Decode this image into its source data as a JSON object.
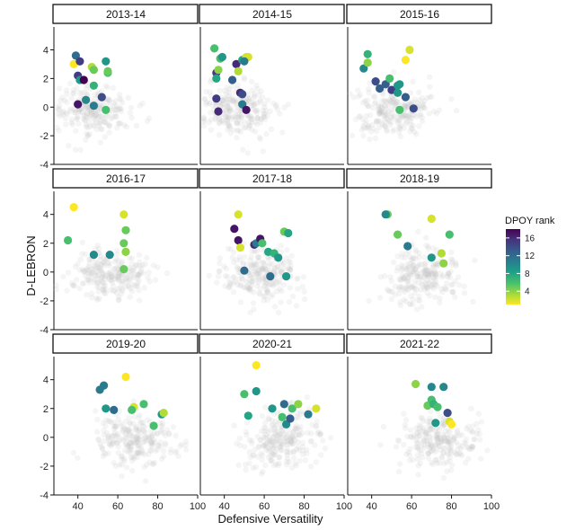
{
  "chart_data": {
    "type": "scatter",
    "subtype": "faceted",
    "xlabel": "Defensive Versatility",
    "ylabel": "D-LEBRON",
    "xlim": [
      28,
      100
    ],
    "ylim": [
      -4,
      5.6
    ],
    "x_ticks": [
      40,
      60,
      80,
      100
    ],
    "y_ticks": [
      -4,
      -2,
      0,
      2,
      4
    ],
    "color_scale": {
      "title": "DPOY rank",
      "palette": "viridis",
      "reversed": true,
      "domain": [
        1,
        18
      ],
      "ticks": [
        4,
        8,
        12,
        16
      ],
      "colors": [
        "#fde725",
        "#a0da39",
        "#4ac16d",
        "#1fa187",
        "#277f8e",
        "#365c8d",
        "#46327e",
        "#440154"
      ]
    },
    "background_points": "light grey cloud of all other players (undifferentiated)",
    "facets": [
      {
        "label": "2013-14",
        "points": [
          {
            "x": 38,
            "y": 3.0,
            "rank": 1
          },
          {
            "x": 39,
            "y": 3.6,
            "rank": 12
          },
          {
            "x": 40,
            "y": 2.2,
            "rank": 15
          },
          {
            "x": 41,
            "y": 3.2,
            "rank": 15
          },
          {
            "x": 41,
            "y": 1.9,
            "rank": 9
          },
          {
            "x": 43,
            "y": 1.9,
            "rank": 18
          },
          {
            "x": 40,
            "y": 0.2,
            "rank": 17
          },
          {
            "x": 44,
            "y": 0.5,
            "rank": 10
          },
          {
            "x": 47,
            "y": 2.8,
            "rank": 3
          },
          {
            "x": 48,
            "y": 2.6,
            "rank": 5
          },
          {
            "x": 48,
            "y": 1.5,
            "rank": 7
          },
          {
            "x": 48,
            "y": 0.1,
            "rank": 11
          },
          {
            "x": 52,
            "y": 0.7,
            "rank": 14
          },
          {
            "x": 54,
            "y": 3.2,
            "rank": 9
          },
          {
            "x": 55,
            "y": 2.4,
            "rank": 6
          },
          {
            "x": 55,
            "y": 2.5,
            "rank": 5
          },
          {
            "x": 54,
            "y": -0.2,
            "rank": 6
          }
        ]
      },
      {
        "label": "2014-15",
        "points": [
          {
            "x": 35,
            "y": 4.1,
            "rank": 6
          },
          {
            "x": 36,
            "y": 2.4,
            "rank": 15
          },
          {
            "x": 37,
            "y": 2.6,
            "rank": 4
          },
          {
            "x": 38,
            "y": 3.4,
            "rank": 6
          },
          {
            "x": 39,
            "y": 3.5,
            "rank": 9
          },
          {
            "x": 36,
            "y": 2.0,
            "rank": 8
          },
          {
            "x": 36,
            "y": 0.6,
            "rank": 15
          },
          {
            "x": 37,
            "y": -0.3,
            "rank": 16
          },
          {
            "x": 44,
            "y": 1.9,
            "rank": 13
          },
          {
            "x": 46,
            "y": 3.0,
            "rank": 16
          },
          {
            "x": 47,
            "y": 2.5,
            "rank": 3
          },
          {
            "x": 49,
            "y": 3.3,
            "rank": 8
          },
          {
            "x": 51,
            "y": 3.5,
            "rank": 2
          },
          {
            "x": 52,
            "y": 3.5,
            "rank": 2
          },
          {
            "x": 48,
            "y": 1.0,
            "rank": 16
          },
          {
            "x": 49,
            "y": 0.2,
            "rank": 11
          },
          {
            "x": 49,
            "y": 0.9,
            "rank": 14
          },
          {
            "x": 51,
            "y": -0.2,
            "rank": 17
          },
          {
            "x": 50,
            "y": 3.2,
            "rank": 11
          }
        ]
      },
      {
        "label": "2015-16",
        "points": [
          {
            "x": 36,
            "y": 2.7,
            "rank": 10
          },
          {
            "x": 38,
            "y": 3.7,
            "rank": 7
          },
          {
            "x": 38,
            "y": 3.1,
            "rank": 4
          },
          {
            "x": 42,
            "y": 1.8,
            "rank": 14
          },
          {
            "x": 44,
            "y": 1.3,
            "rank": 13
          },
          {
            "x": 47,
            "y": 1.6,
            "rank": 13
          },
          {
            "x": 49,
            "y": 2.0,
            "rank": 6
          },
          {
            "x": 50,
            "y": 1.2,
            "rank": 15
          },
          {
            "x": 53,
            "y": 1.5,
            "rank": 9
          },
          {
            "x": 53,
            "y": 1.0,
            "rank": 9
          },
          {
            "x": 54,
            "y": 1.6,
            "rank": 9
          },
          {
            "x": 54,
            "y": -0.2,
            "rank": 6
          },
          {
            "x": 57,
            "y": 3.3,
            "rank": 1
          },
          {
            "x": 59,
            "y": 4.0,
            "rank": 2
          },
          {
            "x": 57,
            "y": 0.7,
            "rank": 13
          },
          {
            "x": 61,
            "y": -0.1,
            "rank": 14
          }
        ]
      },
      {
        "label": "2016-17",
        "points": [
          {
            "x": 38,
            "y": 4.5,
            "rank": 1
          },
          {
            "x": 35,
            "y": 2.2,
            "rank": 6
          },
          {
            "x": 48,
            "y": 1.2,
            "rank": 10
          },
          {
            "x": 56,
            "y": 1.2,
            "rank": 10
          },
          {
            "x": 63,
            "y": 4.0,
            "rank": 2
          },
          {
            "x": 63,
            "y": 2.0,
            "rank": 5
          },
          {
            "x": 64,
            "y": 1.4,
            "rank": 4
          },
          {
            "x": 64,
            "y": 2.9,
            "rank": 5
          },
          {
            "x": 63,
            "y": 0.2,
            "rank": 5
          }
        ]
      },
      {
        "label": "2017-18",
        "points": [
          {
            "x": 47,
            "y": 4.0,
            "rank": 2
          },
          {
            "x": 45,
            "y": 3.0,
            "rank": 17
          },
          {
            "x": 47,
            "y": 2.2,
            "rank": 17
          },
          {
            "x": 48,
            "y": 1.7,
            "rank": 2
          },
          {
            "x": 50,
            "y": 0.1,
            "rank": 12
          },
          {
            "x": 55,
            "y": 1.9,
            "rank": 16
          },
          {
            "x": 56,
            "y": 2.0,
            "rank": 11
          },
          {
            "x": 58,
            "y": 2.3,
            "rank": 17
          },
          {
            "x": 59,
            "y": 2.0,
            "rank": 6
          },
          {
            "x": 62,
            "y": 1.4,
            "rank": 8
          },
          {
            "x": 65,
            "y": 1.3,
            "rank": 7
          },
          {
            "x": 67,
            "y": 1.0,
            "rank": 9
          },
          {
            "x": 70,
            "y": 2.8,
            "rank": 5
          },
          {
            "x": 72,
            "y": 2.7,
            "rank": 8
          },
          {
            "x": 63,
            "y": -0.3,
            "rank": 12
          },
          {
            "x": 71,
            "y": -0.3,
            "rank": 9
          }
        ]
      },
      {
        "label": "2018-19",
        "points": [
          {
            "x": 48,
            "y": 4.0,
            "rank": 5
          },
          {
            "x": 47,
            "y": 4.0,
            "rank": 10
          },
          {
            "x": 53,
            "y": 2.6,
            "rank": 5
          },
          {
            "x": 58,
            "y": 1.8,
            "rank": 11
          },
          {
            "x": 70,
            "y": 3.7,
            "rank": 2
          },
          {
            "x": 70,
            "y": 1.0,
            "rank": 9
          },
          {
            "x": 75,
            "y": 1.3,
            "rank": 3
          },
          {
            "x": 76,
            "y": 0.6,
            "rank": 4
          },
          {
            "x": 79,
            "y": 2.6,
            "rank": 6
          }
        ]
      },
      {
        "label": "2019-20",
        "points": [
          {
            "x": 51,
            "y": 3.3,
            "rank": 11
          },
          {
            "x": 53,
            "y": 3.6,
            "rank": 11
          },
          {
            "x": 54,
            "y": 2.0,
            "rank": 9
          },
          {
            "x": 58,
            "y": 1.9,
            "rank": 12
          },
          {
            "x": 64,
            "y": 4.2,
            "rank": 1
          },
          {
            "x": 68,
            "y": 2.1,
            "rank": 2
          },
          {
            "x": 67,
            "y": 1.9,
            "rank": 6
          },
          {
            "x": 73,
            "y": 2.3,
            "rank": 6
          },
          {
            "x": 78,
            "y": 0.8,
            "rank": 6
          },
          {
            "x": 82,
            "y": 1.6,
            "rank": 9
          },
          {
            "x": 83,
            "y": 1.7,
            "rank": 3
          }
        ]
      },
      {
        "label": "2020-21",
        "points": [
          {
            "x": 56,
            "y": 5.0,
            "rank": 1
          },
          {
            "x": 50,
            "y": 3.0,
            "rank": 6
          },
          {
            "x": 56,
            "y": 3.2,
            "rank": 9
          },
          {
            "x": 52,
            "y": 1.5,
            "rank": 8
          },
          {
            "x": 64,
            "y": 2.0,
            "rank": 9
          },
          {
            "x": 69,
            "y": 1.4,
            "rank": 6
          },
          {
            "x": 70,
            "y": 2.3,
            "rank": 12
          },
          {
            "x": 71,
            "y": 0.9,
            "rank": 10
          },
          {
            "x": 73,
            "y": 1.3,
            "rank": 13
          },
          {
            "x": 74,
            "y": 2.0,
            "rank": 6
          },
          {
            "x": 77,
            "y": 2.3,
            "rank": 4
          },
          {
            "x": 82,
            "y": 1.6,
            "rank": 11
          },
          {
            "x": 86,
            "y": 2.0,
            "rank": 2
          }
        ]
      },
      {
        "label": "2021-22",
        "points": [
          {
            "x": 62,
            "y": 3.7,
            "rank": 4
          },
          {
            "x": 70,
            "y": 3.5,
            "rank": 10
          },
          {
            "x": 68,
            "y": 2.2,
            "rank": 5
          },
          {
            "x": 70,
            "y": 2.6,
            "rank": 6
          },
          {
            "x": 71,
            "y": 2.3,
            "rank": 7
          },
          {
            "x": 73,
            "y": 2.1,
            "rank": 6
          },
          {
            "x": 72,
            "y": 1.0,
            "rank": 9
          },
          {
            "x": 76,
            "y": 3.5,
            "rank": 10
          },
          {
            "x": 78,
            "y": 1.7,
            "rank": 14
          },
          {
            "x": 79,
            "y": 1.1,
            "rank": 2
          },
          {
            "x": 80,
            "y": 0.9,
            "rank": 1
          }
        ]
      }
    ]
  }
}
